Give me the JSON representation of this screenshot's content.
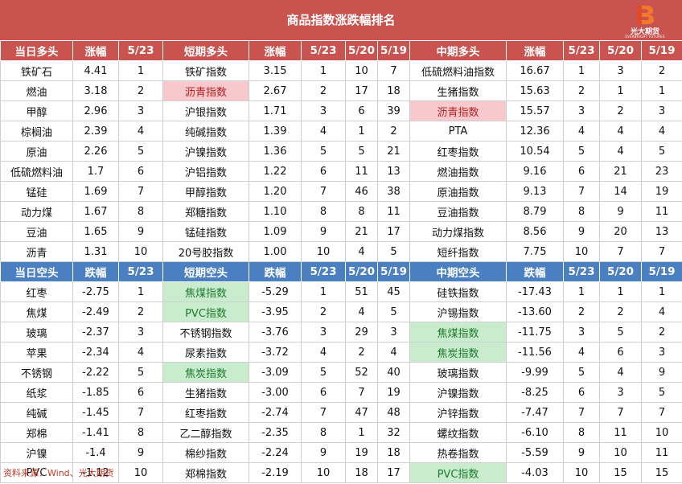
{
  "title": "商品指数涨跌幅排名",
  "logo": {
    "name": "光大期货",
    "sub": "EVERBRIGHT FUTURES",
    "color": "#e24a2a"
  },
  "long_header": [
    "当日多头",
    "涨幅",
    "5/23",
    "短期多头",
    "涨幅",
    "5/23",
    "5/20",
    "5/19",
    "中期多头",
    "涨幅",
    "5/23",
    "5/20",
    "5/19"
  ],
  "long_rows": [
    [
      "铁矿石",
      "4.41",
      "1",
      "铁矿指数",
      "3.15",
      "1",
      "10",
      "7",
      "低硫燃料油指数",
      "16.67",
      "1",
      "3",
      "2"
    ],
    [
      "燃油",
      "3.18",
      "2",
      "沥青指数",
      "2.67",
      "2",
      "17",
      "18",
      "生猪指数",
      "15.63",
      "2",
      "1",
      "1"
    ],
    [
      "甲醇",
      "2.96",
      "3",
      "沪银指数",
      "1.71",
      "3",
      "6",
      "39",
      "沥青指数",
      "15.57",
      "3",
      "2",
      "3"
    ],
    [
      "棕榈油",
      "2.39",
      "4",
      "纯碱指数",
      "1.39",
      "4",
      "1",
      "2",
      "PTA",
      "12.36",
      "4",
      "4",
      "4"
    ],
    [
      "原油",
      "2.26",
      "5",
      "沪镍指数",
      "1.36",
      "5",
      "5",
      "21",
      "红枣指数",
      "10.54",
      "5",
      "4",
      "5"
    ],
    [
      "低硫燃料油",
      "1.7",
      "6",
      "沪铝指数",
      "1.22",
      "6",
      "11",
      "13",
      "燃油指数",
      "9.16",
      "6",
      "21",
      "23"
    ],
    [
      "锰硅",
      "1.69",
      "7",
      "甲醇指数",
      "1.20",
      "7",
      "46",
      "38",
      "原油指数",
      "9.13",
      "7",
      "14",
      "19"
    ],
    [
      "动力煤",
      "1.67",
      "8",
      "郑糖指数",
      "1.10",
      "8",
      "8",
      "11",
      "豆油指数",
      "8.79",
      "8",
      "9",
      "11"
    ],
    [
      "豆油",
      "1.65",
      "9",
      "锰硅指数",
      "1.09",
      "9",
      "21",
      "17",
      "动力煤指数",
      "8.56",
      "9",
      "20",
      "13"
    ],
    [
      "沥青",
      "1.31",
      "10",
      "20号胶指数",
      "1.00",
      "10",
      "4",
      "5",
      "短纤指数",
      "7.75",
      "10",
      "7",
      "7"
    ]
  ],
  "short_header": [
    "当日空头",
    "跌幅",
    "5/23",
    "短期空头",
    "跌幅",
    "5/23",
    "5/20",
    "5/19",
    "中期空头",
    "跌幅",
    "5/23",
    "5/20",
    "5/19"
  ],
  "short_rows": [
    [
      "红枣",
      "-2.75",
      "1",
      "焦煤指数",
      "-5.29",
      "1",
      "51",
      "45",
      "硅铁指数",
      "-17.43",
      "1",
      "1",
      "1"
    ],
    [
      "焦煤",
      "-2.49",
      "2",
      "PVC指数",
      "-3.95",
      "2",
      "4",
      "5",
      "沪锡指数",
      "-13.60",
      "2",
      "2",
      "4"
    ],
    [
      "玻璃",
      "-2.37",
      "3",
      "不锈钢指数",
      "-3.76",
      "3",
      "29",
      "3",
      "焦煤指数",
      "-11.75",
      "3",
      "5",
      "2"
    ],
    [
      "苹果",
      "-2.34",
      "4",
      "尿素指数",
      "-3.72",
      "4",
      "2",
      "4",
      "焦炭指数",
      "-11.56",
      "4",
      "6",
      "3"
    ],
    [
      "不锈钢",
      "-2.22",
      "5",
      "焦炭指数",
      "-3.09",
      "5",
      "52",
      "40",
      "玻璃指数",
      "-9.99",
      "5",
      "4",
      "9"
    ],
    [
      "纸浆",
      "-1.85",
      "6",
      "生猪指数",
      "-3.00",
      "6",
      "7",
      "19",
      "沪镍指数",
      "-8.25",
      "6",
      "3",
      "5"
    ],
    [
      "纯碱",
      "-1.45",
      "7",
      "红枣指数",
      "-2.74",
      "7",
      "47",
      "48",
      "沪锌指数",
      "-7.47",
      "7",
      "7",
      "7"
    ],
    [
      "郑棉",
      "-1.41",
      "8",
      "乙二醇指数",
      "-2.35",
      "8",
      "1",
      "32",
      "螺纹指数",
      "-6.10",
      "8",
      "11",
      "10"
    ],
    [
      "沪镍",
      "-1.4",
      "9",
      "棉纱指数",
      "-2.24",
      "9",
      "19",
      "18",
      "热卷指数",
      "-5.59",
      "9",
      "10",
      "11"
    ],
    [
      "PVC",
      "-1.12",
      "10",
      "郑棉指数",
      "-2.19",
      "10",
      "18",
      "17",
      "PVC指数",
      "-4.03",
      "10",
      "15",
      "15"
    ]
  ],
  "highlights": {
    "long": [
      [
        1,
        3,
        "red"
      ],
      [
        2,
        8,
        "red"
      ]
    ],
    "short": [
      [
        0,
        3,
        "green"
      ],
      [
        1,
        3,
        "green"
      ],
      [
        4,
        3,
        "green"
      ],
      [
        2,
        8,
        "green"
      ],
      [
        3,
        8,
        "green"
      ],
      [
        9,
        8,
        "green"
      ]
    ]
  },
  "source": "资料来源：Wind、光大期货"
}
